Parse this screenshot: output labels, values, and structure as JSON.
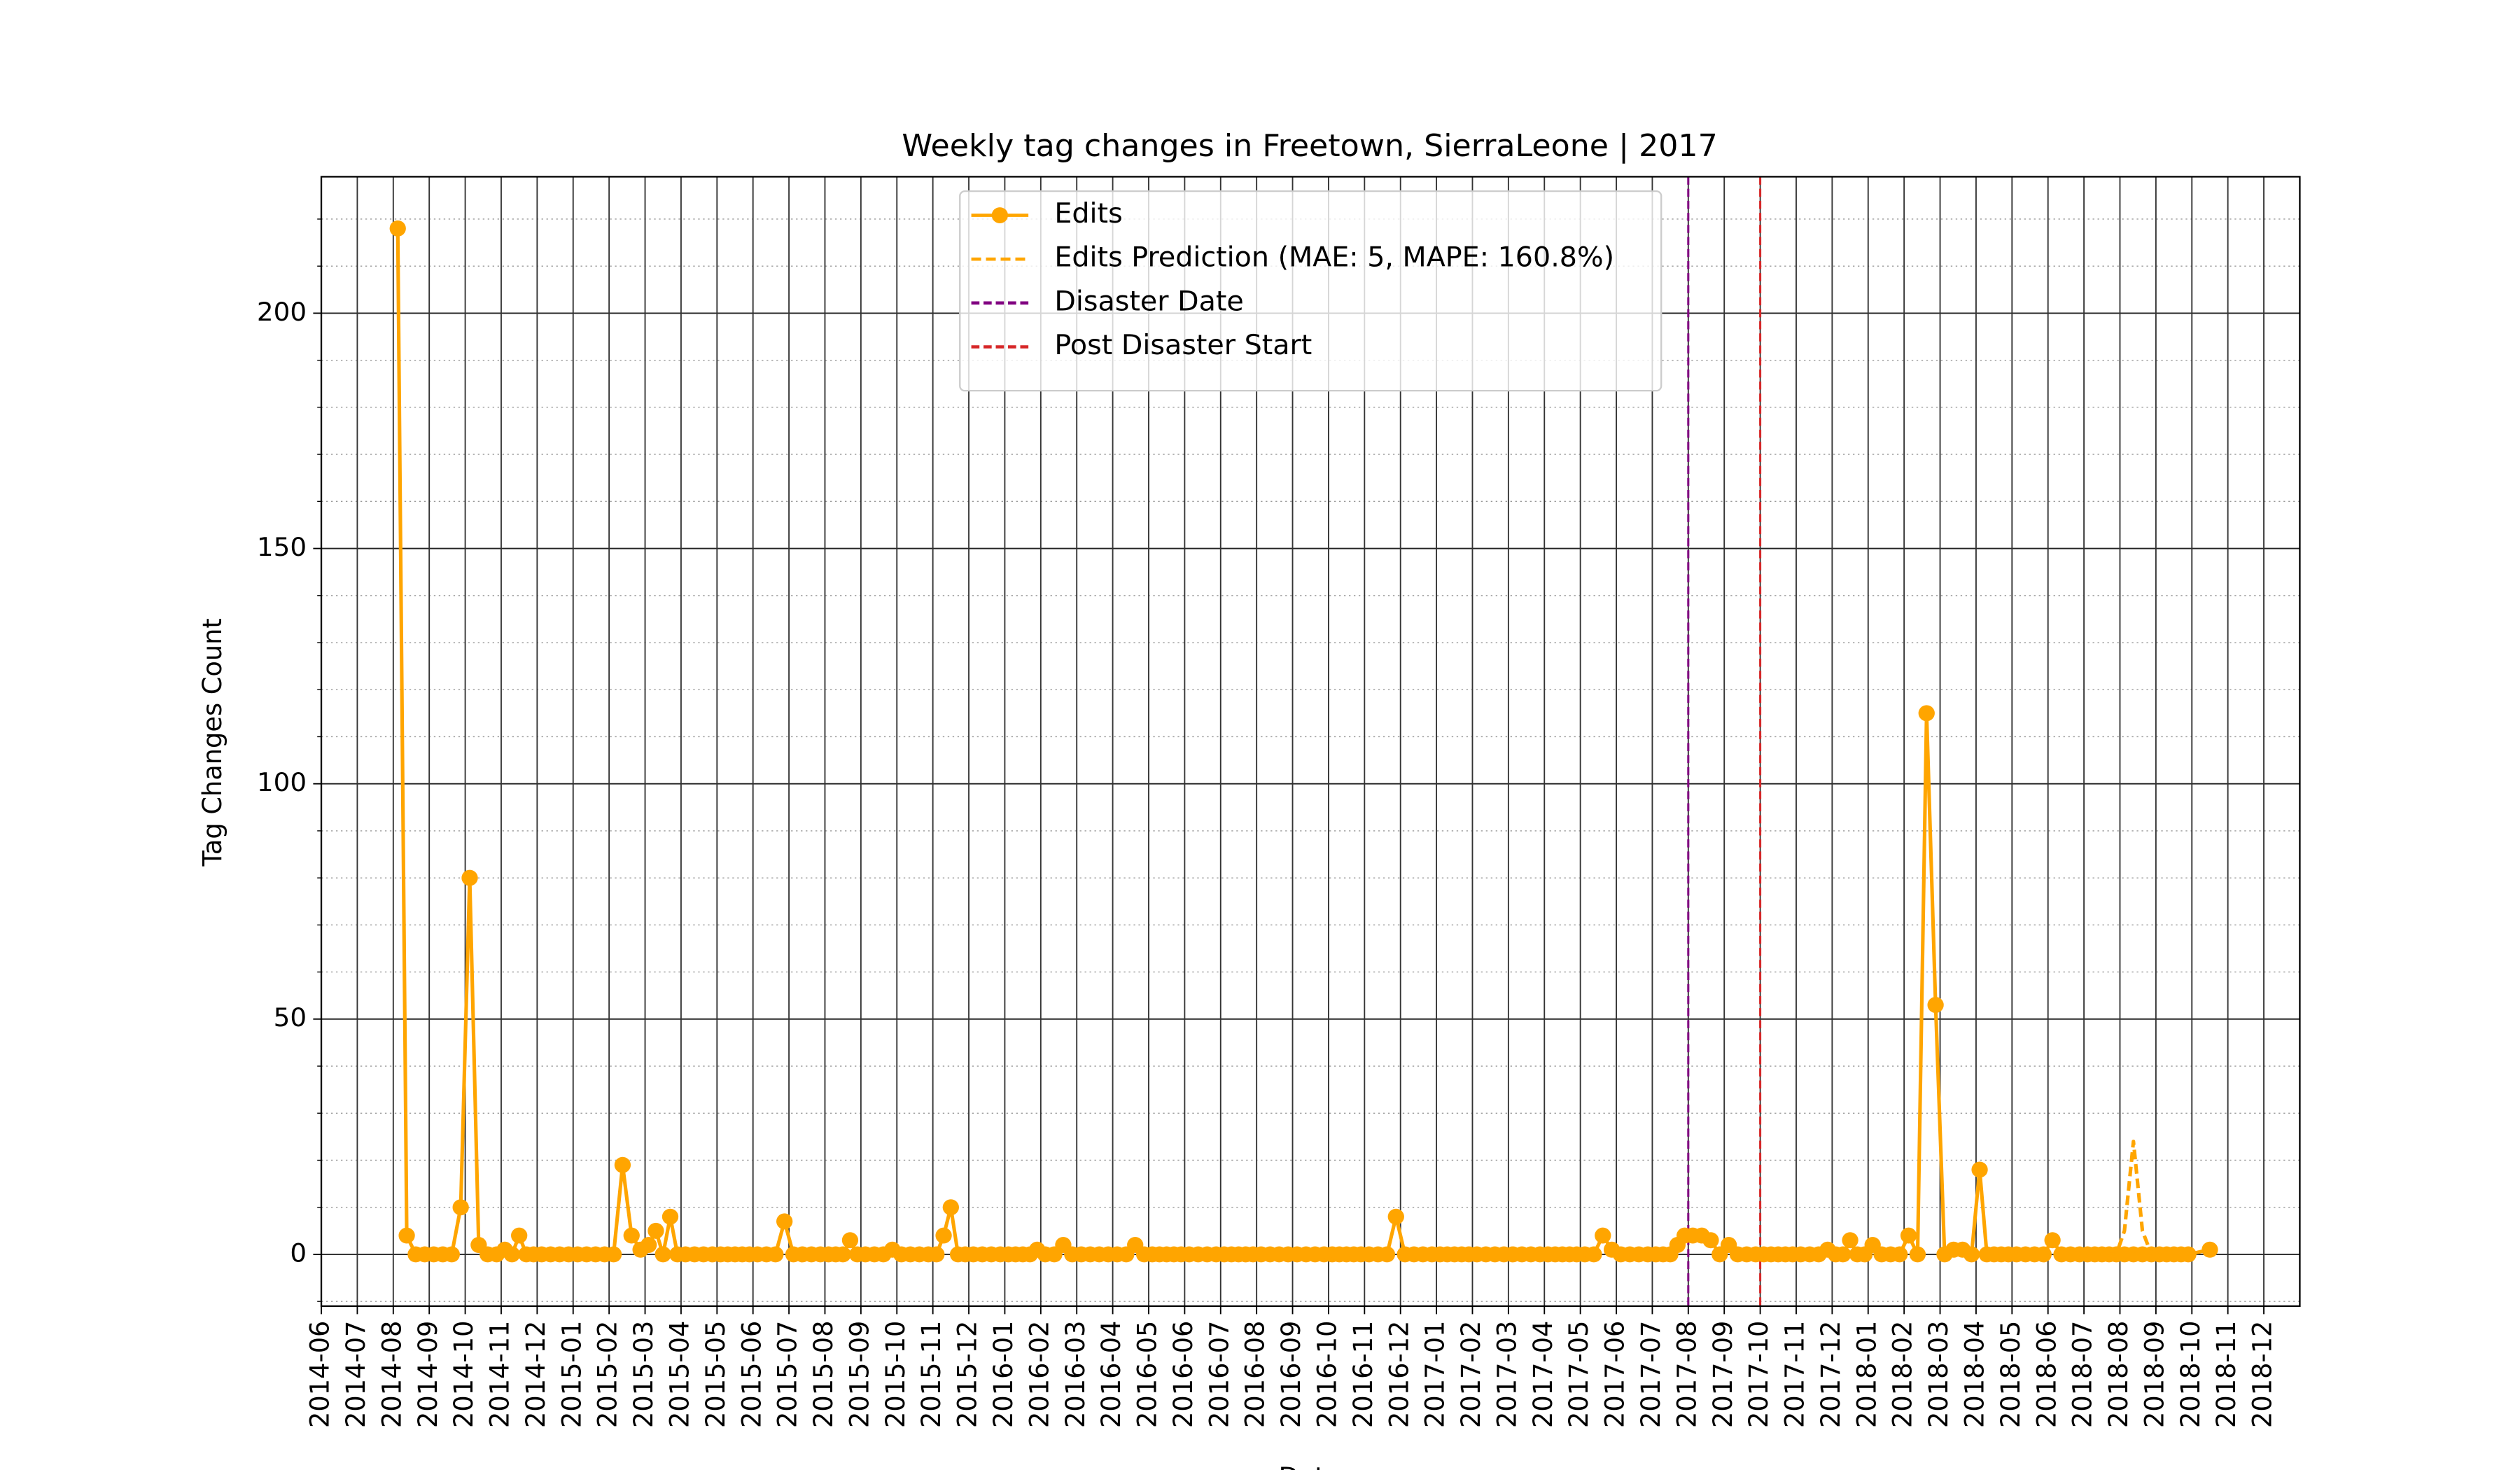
{
  "chart_data": {
    "type": "line",
    "title": "Weekly tag changes in Freetown, SierraLeone | 2017",
    "xlabel": "Date",
    "ylabel": "Tag Changes Count",
    "xlim": [
      "2014-06",
      "2019-01"
    ],
    "xticks": [
      "2014-06",
      "2014-07",
      "2014-08",
      "2014-09",
      "2014-10",
      "2014-11",
      "2014-12",
      "2015-01",
      "2015-02",
      "2015-03",
      "2015-04",
      "2015-05",
      "2015-06",
      "2015-07",
      "2015-08",
      "2015-09",
      "2015-10",
      "2015-11",
      "2015-12",
      "2016-01",
      "2016-02",
      "2016-03",
      "2016-04",
      "2016-05",
      "2016-06",
      "2016-07",
      "2016-08",
      "2016-09",
      "2016-10",
      "2016-11",
      "2016-12",
      "2017-01",
      "2017-02",
      "2017-03",
      "2017-04",
      "2017-05",
      "2017-06",
      "2017-07",
      "2017-08",
      "2017-09",
      "2017-10",
      "2017-11",
      "2017-12",
      "2018-01",
      "2018-02",
      "2018-03",
      "2018-04",
      "2018-05",
      "2018-06",
      "2018-07",
      "2018-08",
      "2018-09",
      "2018-10",
      "2018-11",
      "2018-12"
    ],
    "ylim": [
      -11,
      229
    ],
    "yticks": [
      0,
      50,
      100,
      150,
      200
    ],
    "yminorticks": [
      -10,
      10,
      20,
      30,
      40,
      60,
      70,
      80,
      90,
      110,
      120,
      130,
      140,
      160,
      170,
      180,
      190,
      210,
      220
    ],
    "grid": true,
    "legend_loc": "upper center",
    "x": [
      "2014-08",
      "2014-08",
      "2014-08",
      "2014-08",
      "2014-09",
      "2014-09",
      "2014-09",
      "2014-09",
      "2014-10",
      "2014-10",
      "2014-10",
      "2014-10",
      "2014-11",
      "2014-11",
      "2014-11",
      "2014-11",
      "2014-11",
      "2014-12",
      "2014-12",
      "2014-12",
      "2014-12",
      "2015-01",
      "2015-01",
      "2015-01",
      "2015-01",
      "2015-02",
      "2015-02",
      "2015-02",
      "2015-02",
      "2015-03",
      "2015-03",
      "2015-03",
      "2015-03",
      "2015-03",
      "2015-04",
      "2015-04",
      "2015-04",
      "2015-04",
      "2015-05",
      "2015-05",
      "2015-05",
      "2015-05",
      "2015-05",
      "2015-06",
      "2015-06",
      "2015-06",
      "2015-06",
      "2015-07",
      "2015-07",
      "2015-07",
      "2015-07",
      "2015-08",
      "2015-08",
      "2015-08",
      "2015-08",
      "2015-08",
      "2015-09",
      "2015-09",
      "2015-09",
      "2015-09",
      "2015-10",
      "2015-10",
      "2015-10",
      "2015-10",
      "2015-11",
      "2015-11",
      "2015-11",
      "2015-11",
      "2015-11",
      "2015-12",
      "2015-12",
      "2015-12",
      "2015-12",
      "2016-01",
      "2016-01",
      "2016-01",
      "2016-01",
      "2016-01",
      "2016-02",
      "2016-02",
      "2016-02",
      "2016-02",
      "2016-03",
      "2016-03",
      "2016-03",
      "2016-03",
      "2016-04",
      "2016-04",
      "2016-04",
      "2016-04",
      "2016-05",
      "2016-05",
      "2016-05",
      "2016-05",
      "2016-05",
      "2016-06",
      "2016-06",
      "2016-06",
      "2016-06",
      "2016-07",
      "2016-07",
      "2016-07",
      "2016-07",
      "2016-07",
      "2016-08",
      "2016-08",
      "2016-08",
      "2016-08",
      "2016-09",
      "2016-09",
      "2016-09",
      "2016-09",
      "2016-10",
      "2016-10",
      "2016-10",
      "2016-10",
      "2016-10",
      "2016-11",
      "2016-11",
      "2016-11",
      "2016-11",
      "2016-12",
      "2016-12",
      "2016-12",
      "2016-12",
      "2017-01",
      "2017-01",
      "2017-01",
      "2017-01",
      "2017-01",
      "2017-02",
      "2017-02",
      "2017-02",
      "2017-02",
      "2017-03",
      "2017-03",
      "2017-03",
      "2017-03",
      "2017-04",
      "2017-04",
      "2017-04",
      "2017-04",
      "2017-04",
      "2017-05",
      "2017-05",
      "2017-05",
      "2017-05",
      "2017-06",
      "2017-06",
      "2017-06",
      "2017-06",
      "2017-07",
      "2017-07",
      "2017-07",
      "2017-07",
      "2017-07",
      "2017-08",
      "2017-08",
      "2017-08",
      "2017-08",
      "2017-09",
      "2017-09",
      "2017-09",
      "2017-09",
      "2017-10",
      "2017-10",
      "2017-10",
      "2017-10",
      "2017-10",
      "2017-11",
      "2017-11",
      "2017-11",
      "2017-11",
      "2017-12",
      "2017-12",
      "2017-12",
      "2017-12",
      "2017-12",
      "2018-01",
      "2018-01",
      "2018-01",
      "2018-01",
      "2018-02",
      "2018-02",
      "2018-02",
      "2018-02",
      "2018-03",
      "2018-03",
      "2018-03",
      "2018-03",
      "2018-04",
      "2018-04",
      "2018-04",
      "2018-04",
      "2018-04",
      "2018-05",
      "2018-05",
      "2018-05",
      "2018-05",
      "2018-06",
      "2018-06",
      "2018-06",
      "2018-06",
      "2018-07",
      "2018-07",
      "2018-07",
      "2018-07",
      "2018-07",
      "2018-08",
      "2018-08",
      "2018-08",
      "2018-08",
      "2018-09",
      "2018-09",
      "2018-09",
      "2018-09",
      "2018-09",
      "2018-10"
    ],
    "series": [
      {
        "name": "Edits",
        "color": "#ffa500",
        "linestyle": "solid",
        "marker": "o",
        "values": [
          218,
          4,
          0,
          0,
          0,
          0,
          0,
          10,
          80,
          2,
          0,
          0,
          1,
          0,
          4,
          0,
          0,
          0,
          0,
          0,
          0,
          0,
          0,
          0,
          0,
          0,
          19,
          4,
          1,
          2,
          5,
          0,
          8,
          0,
          0,
          0,
          0,
          0,
          0,
          0,
          0,
          0,
          0,
          0,
          0,
          0,
          7,
          0,
          0,
          0,
          0,
          0,
          0,
          0,
          3,
          0,
          0,
          0,
          0,
          1,
          0,
          0,
          0,
          0,
          0,
          4,
          10,
          0,
          0,
          0,
          0,
          0,
          0,
          0,
          0,
          0,
          0,
          1,
          0,
          0,
          2,
          0,
          0,
          0,
          0,
          0,
          0,
          0,
          2,
          0,
          0,
          0,
          0,
          0,
          0,
          0,
          0,
          0,
          0,
          0,
          0,
          0,
          0,
          0,
          0,
          0,
          0,
          0,
          0,
          0,
          0,
          0,
          0,
          0,
          0,
          0,
          0,
          0,
          0,
          0,
          8,
          0,
          0,
          0,
          0,
          0,
          0,
          0,
          0,
          0,
          0,
          0,
          0,
          0,
          0,
          0,
          0,
          0,
          0,
          0,
          0,
          0,
          0,
          0,
          0,
          4,
          1,
          0,
          0,
          0,
          0,
          0,
          0,
          0,
          2,
          4,
          4,
          4,
          3,
          0,
          2,
          0,
          0,
          0,
          0,
          0,
          0,
          0,
          0,
          0,
          0,
          0,
          1,
          0,
          0,
          3,
          0,
          0,
          2,
          0,
          0,
          0,
          4,
          0,
          115,
          53,
          0,
          1,
          1,
          0,
          18,
          0,
          0,
          0,
          0,
          0,
          0,
          0,
          0,
          3,
          0,
          0,
          0,
          0,
          0,
          0,
          0,
          0,
          0,
          0,
          0,
          0,
          0,
          0,
          0,
          0,
          0,
          1
        ]
      },
      {
        "name": "Edits Prediction (MAE: 5, MAPE: 160.8%)",
        "color": "#ffa500",
        "linestyle": "dashed",
        "values": [
          null,
          null,
          null,
          null,
          null,
          null,
          null,
          null,
          null,
          null,
          null,
          null,
          null,
          null,
          null,
          null,
          null,
          null,
          null,
          null,
          null,
          null,
          null,
          null,
          null,
          null,
          null,
          null,
          null,
          null,
          null,
          null,
          null,
          null,
          null,
          null,
          null,
          null,
          null,
          null,
          null,
          null,
          null,
          null,
          null,
          null,
          null,
          null,
          null,
          null,
          null,
          null,
          null,
          null,
          null,
          null,
          null,
          null,
          null,
          null,
          null,
          null,
          null,
          null,
          null,
          null,
          null,
          null,
          null,
          null,
          null,
          null,
          null,
          null,
          null,
          null,
          null,
          null,
          null,
          null,
          null,
          null,
          null,
          null,
          null,
          null,
          null,
          null,
          null,
          null,
          null,
          null,
          null,
          null,
          null,
          null,
          null,
          null,
          null,
          null,
          null,
          null,
          null,
          null,
          null,
          null,
          null,
          null,
          null,
          null,
          null,
          null,
          null,
          null,
          null,
          null,
          null,
          null,
          null,
          null,
          null,
          null,
          null,
          null,
          null,
          null,
          null,
          null,
          null,
          null,
          null,
          null,
          null,
          null,
          null,
          null,
          null,
          null,
          null,
          null,
          null,
          null,
          null,
          null,
          null,
          null,
          null,
          null,
          null,
          null,
          null,
          null,
          null,
          null,
          null,
          null,
          null,
          null,
          null,
          null,
          null,
          null,
          null,
          null,
          null,
          null,
          null,
          null,
          null,
          null,
          null,
          null,
          null,
          null,
          null,
          null,
          null,
          null,
          null,
          null,
          null,
          null,
          null,
          null,
          null,
          null,
          null,
          null,
          null,
          null,
          null,
          null,
          null,
          null,
          null,
          null,
          null,
          null,
          null,
          null,
          null,
          null,
          null,
          null,
          null,
          null,
          0,
          0,
          5,
          24,
          5,
          0,
          null,
          null,
          null,
          null,
          null,
          null
        ]
      }
    ],
    "vlines": [
      {
        "name": "Disaster Date",
        "x": "2017-08",
        "color": "#800080"
      },
      {
        "name": "Post Disaster Start",
        "x": "2017-10",
        "color": "#d62728"
      }
    ]
  }
}
